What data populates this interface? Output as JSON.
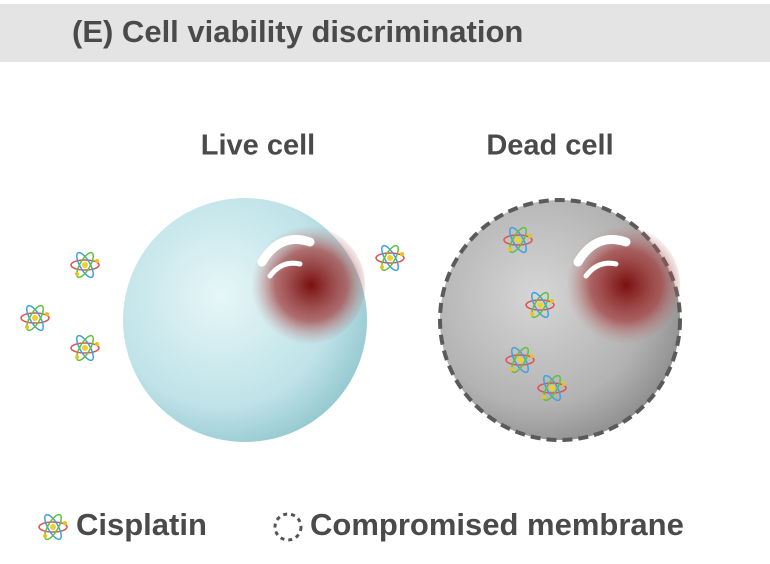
{
  "header": {
    "title": "(E) Cell viability discrimination"
  },
  "cells": [
    {
      "label": "Live cell"
    },
    {
      "label": "Dead cell"
    }
  ],
  "legend": [
    {
      "label": "Cisplatin"
    },
    {
      "label": "Compromised membrane"
    }
  ]
}
